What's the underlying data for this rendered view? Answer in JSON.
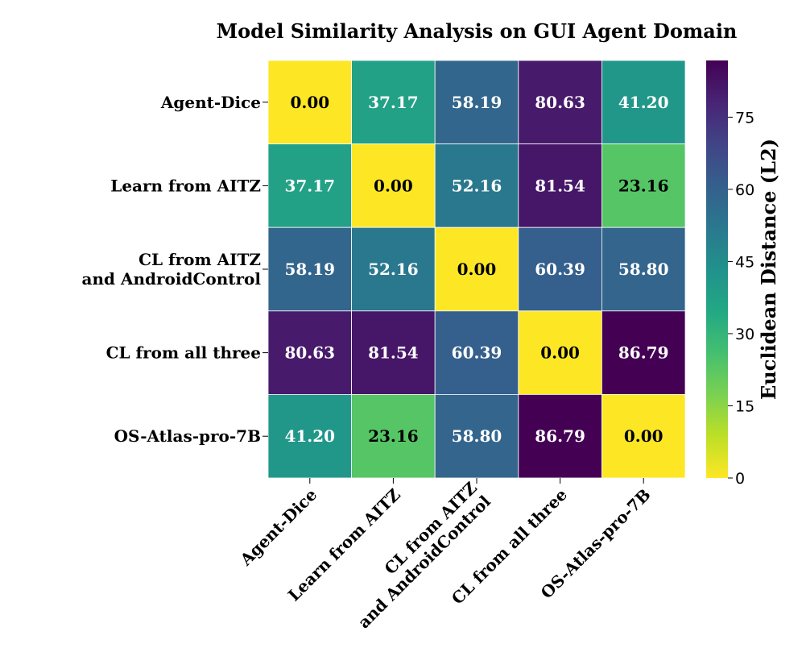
{
  "chart_data": {
    "type": "heatmap",
    "title": "Model Similarity Analysis on GUI Agent Domain",
    "row_labels": [
      [
        "Agent-Dice"
      ],
      [
        "Learn from AITZ"
      ],
      [
        "CL from AITZ",
        "and AndroidControl"
      ],
      [
        "CL from all three"
      ],
      [
        "OS-Atlas-pro-7B"
      ]
    ],
    "col_labels": [
      [
        "Agent-Dice"
      ],
      [
        "Learn from AITZ"
      ],
      [
        "CL from AITZ",
        "and AndroidControl"
      ],
      [
        "CL from all three"
      ],
      [
        "OS-Atlas-pro-7B"
      ]
    ],
    "values": [
      [
        0.0,
        37.17,
        58.19,
        80.63,
        41.2
      ],
      [
        37.17,
        0.0,
        52.16,
        81.54,
        23.16
      ],
      [
        58.19,
        52.16,
        0.0,
        60.39,
        58.8
      ],
      [
        80.63,
        81.54,
        60.39,
        0.0,
        86.79
      ],
      [
        41.2,
        23.16,
        58.8,
        86.79,
        0.0
      ]
    ],
    "value_format": "2 decimals",
    "colormap": "viridis_r",
    "colorbar": {
      "label": "Euclidean Distance (L2)",
      "range": [
        0,
        86.79
      ],
      "ticks": [
        0,
        15,
        30,
        45,
        60,
        75
      ]
    }
  }
}
